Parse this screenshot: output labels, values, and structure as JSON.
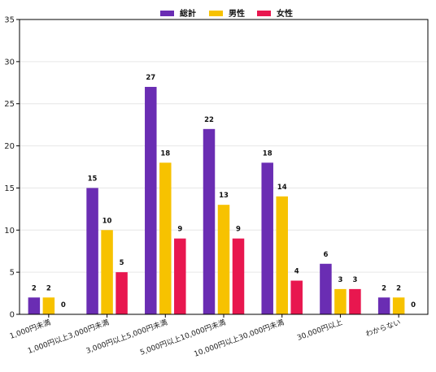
{
  "chart_data": {
    "type": "bar",
    "title": "",
    "xlabel": "",
    "ylabel": "",
    "ylim": [
      0,
      35
    ],
    "yticks": [
      0,
      5,
      10,
      15,
      20,
      25,
      30,
      35
    ],
    "grid": "horizontal",
    "legend": "top-center",
    "categories": [
      "1,000円未満",
      "1,000円以上3,000円未満",
      "3,000円以上5,000円未満",
      "5,000円以上10,000円未満",
      "10,000円以上30,000円未満",
      "30,000円以上",
      "わからない"
    ],
    "series": [
      {
        "name": "総計",
        "color": "#6a2db3",
        "values": [
          2,
          15,
          27,
          22,
          18,
          6,
          2
        ]
      },
      {
        "name": "男性",
        "color": "#f7c200",
        "values": [
          2,
          10,
          18,
          13,
          14,
          3,
          2
        ]
      },
      {
        "name": "女性",
        "color": "#e8174f",
        "values": [
          0,
          5,
          9,
          9,
          4,
          3,
          0
        ]
      }
    ]
  }
}
